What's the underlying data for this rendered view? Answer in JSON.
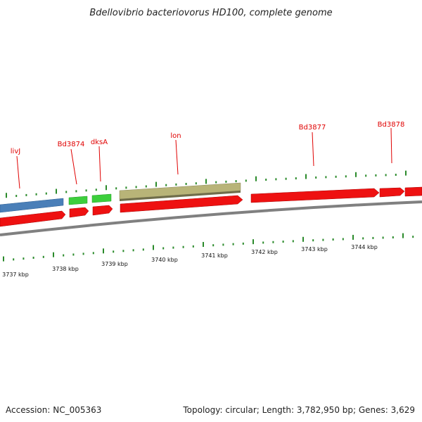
{
  "header": {
    "title": "Bdellovibrio bacteriovorus HD100, complete genome"
  },
  "footer": {
    "accession": "Accession: NC_005363",
    "summary": "Topology: circular; Length: 3,782,950 bp; Genes: 3,629"
  },
  "map": {
    "kbp_labels": [
      "3737 kbp",
      "3738 kbp",
      "3739 kbp",
      "3740 kbp",
      "3741 kbp",
      "3742 kbp",
      "3743 kbp",
      "3744 kbp"
    ],
    "genes": [
      {
        "name": "livJ",
        "color": "#4a7fb8",
        "strand": "+",
        "role": "gene-livj"
      },
      {
        "name": "Bd3874",
        "color": "#33cc33",
        "strand": "+",
        "role": "gene-bd3874"
      },
      {
        "name": "dksA",
        "color": "#33cc33",
        "strand": "+",
        "role": "gene-dksa"
      },
      {
        "name": "lon",
        "color": "#b8b478",
        "strand": "+",
        "role": "gene-lon"
      },
      {
        "name": "Bd3877",
        "color": "#ee1111",
        "strand": "+",
        "role": "gene-bd3877"
      },
      {
        "name": "Bd3878",
        "color": "#ee1111",
        "strand": "+",
        "role": "gene-bd3878"
      }
    ],
    "colors": {
      "backbone": "#8a8a8a",
      "tick": "#2a8a2a",
      "label": "#e00000",
      "red_feature": "#ee1111"
    }
  }
}
